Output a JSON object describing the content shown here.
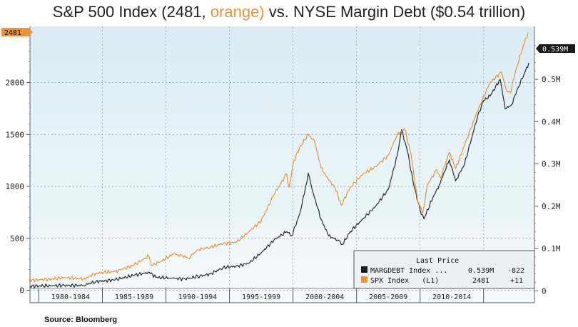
{
  "title": {
    "prefix": "S&P 500 Index (2481, ",
    "highlight": "orange)",
    "suffix": "  vs. NYSE Margin Debt ($0.54 trillion)"
  },
  "source": "Source: Bloomberg",
  "colors": {
    "spx": "#e8943a",
    "margin": "#2b2b2b",
    "bg_top": "#dcecf5",
    "bg_mid": "#e8f3f8",
    "bg_bot": "#f5fafc",
    "panel": "#ecf3f7"
  },
  "chart_data": {
    "type": "line",
    "x_range": [
      1978.3,
      2018.0
    ],
    "left_axis": {
      "range": [
        -120,
        2540
      ],
      "ticks": [
        0,
        500,
        1000,
        1500,
        2000
      ],
      "tick_labels": [
        "0",
        "500",
        "1000",
        "1500",
        "2000"
      ]
    },
    "right_axis": {
      "range": [
        -0.028,
        0.625
      ],
      "ticks": [
        0,
        0.1,
        0.2,
        0.3,
        0.4,
        0.5
      ],
      "tick_labels": [
        "0",
        "0.1M",
        "0.2M",
        "0.3M",
        "0.4M",
        "0.5M"
      ]
    },
    "x_categories": [
      "1980-1984",
      "1985-1989",
      "1990-1994",
      "1995-1999",
      "2000-2004",
      "2005-2009",
      "2010-2014"
    ],
    "x_category_bounds": [
      1979,
      1984,
      1989,
      1994,
      1999,
      2004,
      2009,
      2014
    ],
    "last_value_tags": {
      "spx": "2481",
      "margin": "0.539M"
    },
    "legend": {
      "header": "Last Price",
      "rows": [
        {
          "name": "MARGDEBT Index ...",
          "last": "0.539M",
          "change": "-822"
        },
        {
          "name": "SPX Index   (L1)",
          "last": "2481",
          "change": "+11"
        }
      ]
    },
    "series": [
      {
        "name": "SPX Index",
        "axis": "left",
        "x": [
          1978.3,
          1980,
          1981,
          1982.6,
          1983.5,
          1985,
          1986.5,
          1987.65,
          1987.85,
          1988.5,
          1989.6,
          1990.3,
          1990.8,
          1991.5,
          1992.5,
          1993.5,
          1994.5,
          1995.5,
          1996.5,
          1997.5,
          1998.5,
          1998.7,
          1999.0,
          1999.5,
          2000.2,
          2000.7,
          2001.2,
          2001.8,
          2002.3,
          2002.8,
          2003.5,
          2004.5,
          2005.5,
          2006.5,
          2007.2,
          2007.8,
          2008.3,
          2008.8,
          2009.2,
          2009.6,
          2010.3,
          2010.6,
          2011.3,
          2011.8,
          2012.5,
          2013.5,
          2014.5,
          2015.4,
          2015.8,
          2016.1,
          2016.6,
          2017.2,
          2017.5
        ],
        "y": [
          96,
          108,
          122,
          110,
          166,
          180,
          242,
          330,
          240,
          270,
          350,
          330,
          310,
          390,
          415,
          450,
          460,
          560,
          670,
          920,
          1120,
          990,
          1220,
          1370,
          1500,
          1430,
          1180,
          1060,
          990,
          820,
          990,
          1120,
          1190,
          1300,
          1500,
          1550,
          1300,
          860,
          740,
          1020,
          1160,
          1080,
          1330,
          1170,
          1400,
          1720,
          2000,
          2100,
          1920,
          1900,
          2150,
          2380,
          2481
        ]
      },
      {
        "name": "MARGDEBT Index",
        "axis": "right",
        "x": [
          1978.3,
          1979,
          1980,
          1981,
          1982.5,
          1983.5,
          1985,
          1986.5,
          1987.7,
          1988.2,
          1989.5,
          1990.5,
          1991.5,
          1992.5,
          1993.5,
          1994.5,
          1995.5,
          1996.5,
          1997.5,
          1998.5,
          1998.9,
          1999.5,
          1999.9,
          2000.2,
          2000.6,
          2001.2,
          2001.8,
          2002.5,
          2002.9,
          2003.5,
          2004.5,
          2005.5,
          2006.5,
          2007.2,
          2007.55,
          2008.0,
          2008.5,
          2009.0,
          2009.3,
          2010.0,
          2010.5,
          2011.3,
          2011.8,
          2012.5,
          2013.5,
          2014.0,
          2014.5,
          2015.3,
          2015.7,
          2016.2,
          2016.7,
          2017.3,
          2017.55
        ],
        "y": [
          0.011,
          0.012,
          0.012,
          0.013,
          0.013,
          0.022,
          0.026,
          0.037,
          0.044,
          0.032,
          0.03,
          0.028,
          0.034,
          0.04,
          0.055,
          0.058,
          0.065,
          0.09,
          0.12,
          0.14,
          0.13,
          0.18,
          0.23,
          0.278,
          0.23,
          0.17,
          0.13,
          0.12,
          0.11,
          0.14,
          0.17,
          0.2,
          0.24,
          0.32,
          0.381,
          0.33,
          0.25,
          0.19,
          0.17,
          0.22,
          0.25,
          0.31,
          0.26,
          0.3,
          0.41,
          0.45,
          0.46,
          0.5,
          0.43,
          0.44,
          0.48,
          0.52,
          0.539
        ]
      }
    ]
  }
}
